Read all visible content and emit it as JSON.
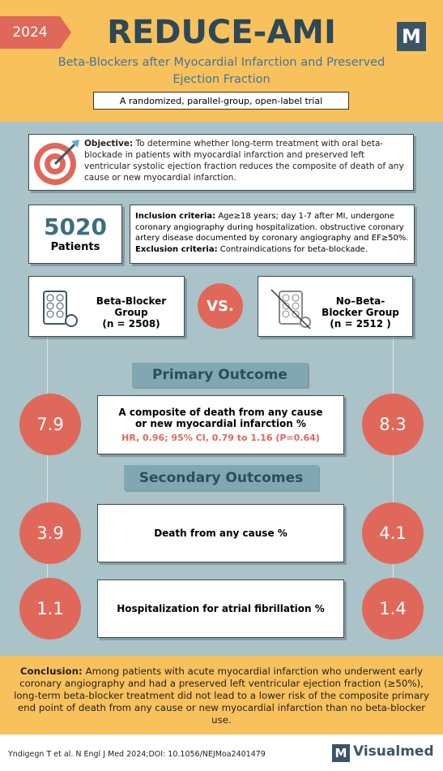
{
  "header": {
    "year": "2024",
    "title": "REDUCE-AMI",
    "subtitle": "Beta-Blockers after Myocardial Infarction and Preserved Ejection Fraction",
    "design": "A randomized, parallel-group, open-label trial",
    "logo": "M"
  },
  "objective": {
    "label": "Objective:",
    "text": "To determine whether long-term treatment with oral beta-blockade in patients with myocardial infarction and preserved left ventricular systolic ejection fraction reduces the composite of death of any cause or new myocardial infarction."
  },
  "patients": {
    "count": "5020",
    "label": "Patients"
  },
  "criteria": {
    "inclusion_label": "Inclusion criteria:",
    "inclusion_text": "Age≥18 years; day 1-7 after MI, undergone coronary angiography during hospitalization. obstructive coronary artery disease documented by coronary angiography and EF≥50%.",
    "exclusion_label": "Exclusion criteria:",
    "exclusion_text": "Contraindications for beta-blockade."
  },
  "groups": {
    "left": {
      "name": "Beta-Blocker Group",
      "n": "(n = 2508)"
    },
    "vs": "VS.",
    "right": {
      "name": "No–Beta-Blocker Group",
      "n": "(n = 2512 )"
    }
  },
  "primary": {
    "heading": "Primary Outcome",
    "label": "A composite of death from any cause or new myocardial infarction %",
    "stats": "HR, 0.96; 95% CI, 0.79 to 1.16 (P=0.64)",
    "left": 7.9,
    "right": 8.3
  },
  "secondary": {
    "heading": "Secondary Outcomes",
    "items": [
      {
        "label": "Death from any cause %",
        "left": 3.9,
        "right": 4.1
      },
      {
        "label": "Hospitalization for atrial fibrillation %",
        "left": 1.1,
        "right": 1.4
      }
    ]
  },
  "conclusion": {
    "label": "Conclusion:",
    "text": "Among patients with acute myocardial infarction who underwent early coronary angiography and had a preserved left ventricular ejection fraction (≥50%), long-term beta-blocker treatment did not lead to a lower risk of the composite primary end point of death from any cause or new myocardial infarction than no beta-blocker use."
  },
  "footer": {
    "citation": "Yndigegn T et al. N Engl J Med 2024;DOI: 10.1056/NEJMoa2401479",
    "brand_logo": "M",
    "brand": "Visualmed"
  }
}
